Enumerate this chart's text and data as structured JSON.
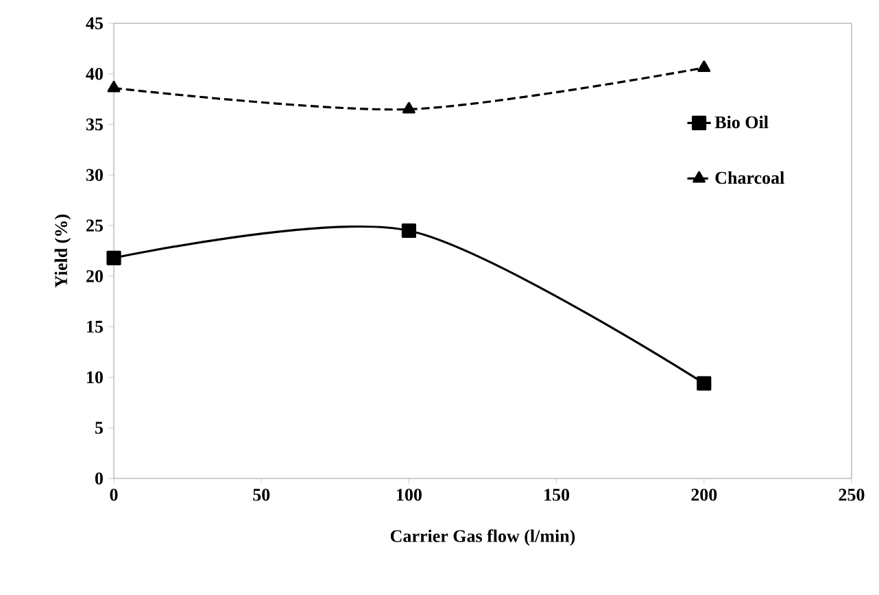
{
  "chart_data": {
    "type": "line",
    "xlabel": "Carrier Gas flow (l/min)",
    "ylabel": "Yield (%)",
    "x": [
      0,
      100,
      200
    ],
    "series": [
      {
        "name": "Bio Oil",
        "color": "#000000",
        "values": [
          21.8,
          24.5,
          9.4
        ],
        "marker": "square",
        "line_style": "solid"
      },
      {
        "name": "Charcoal",
        "color": "#000000",
        "values": [
          38.6,
          36.5,
          40.6
        ],
        "marker": "triangle",
        "line_style": "dashed"
      }
    ],
    "xlim": [
      0,
      250
    ],
    "xticks": [
      0,
      50,
      100,
      150,
      200,
      250
    ],
    "ylim": [
      0,
      45
    ],
    "yticks": [
      0,
      5,
      10,
      15,
      20,
      25,
      30,
      35,
      40,
      45
    ],
    "grid": false,
    "legend": "right"
  }
}
